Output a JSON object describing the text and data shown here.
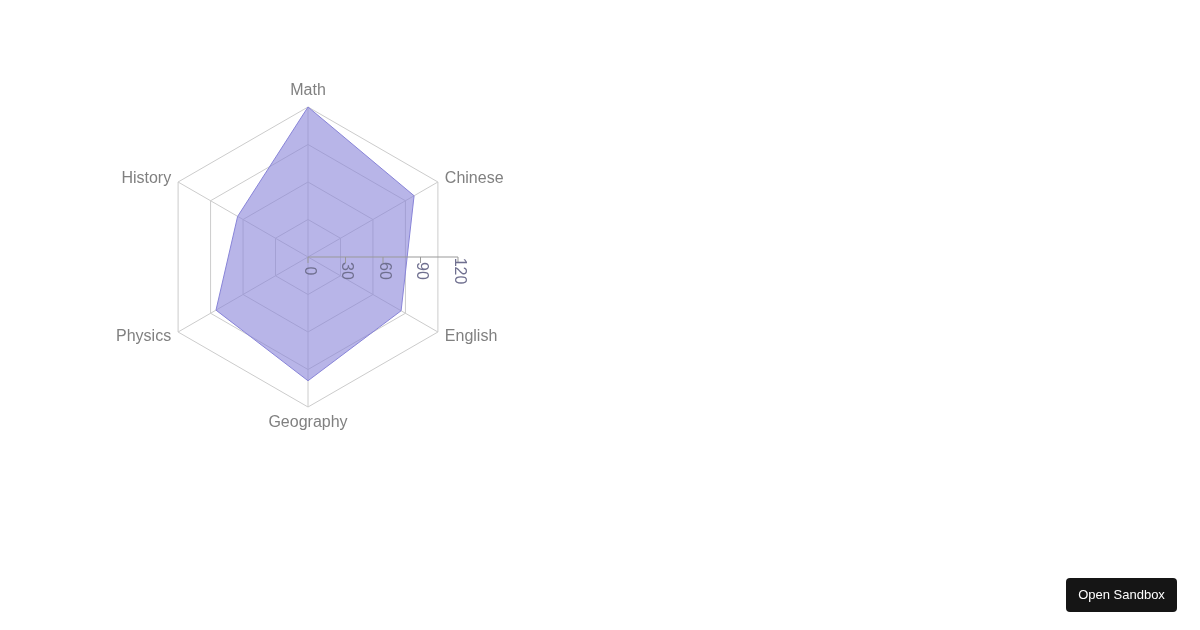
{
  "chart_data": {
    "type": "radar",
    "categories": [
      "Math",
      "Chinese",
      "English",
      "Geography",
      "Physics",
      "History"
    ],
    "series": [
      {
        "color": "#8884d8",
        "values": [
          120,
          98,
          86,
          99,
          85,
          65
        ]
      }
    ],
    "ylim": [
      0,
      120
    ],
    "yticks": [
      0,
      30,
      60,
      90,
      120
    ],
    "grid": true,
    "annotations": [
      "Open Sandbox"
    ]
  }
}
